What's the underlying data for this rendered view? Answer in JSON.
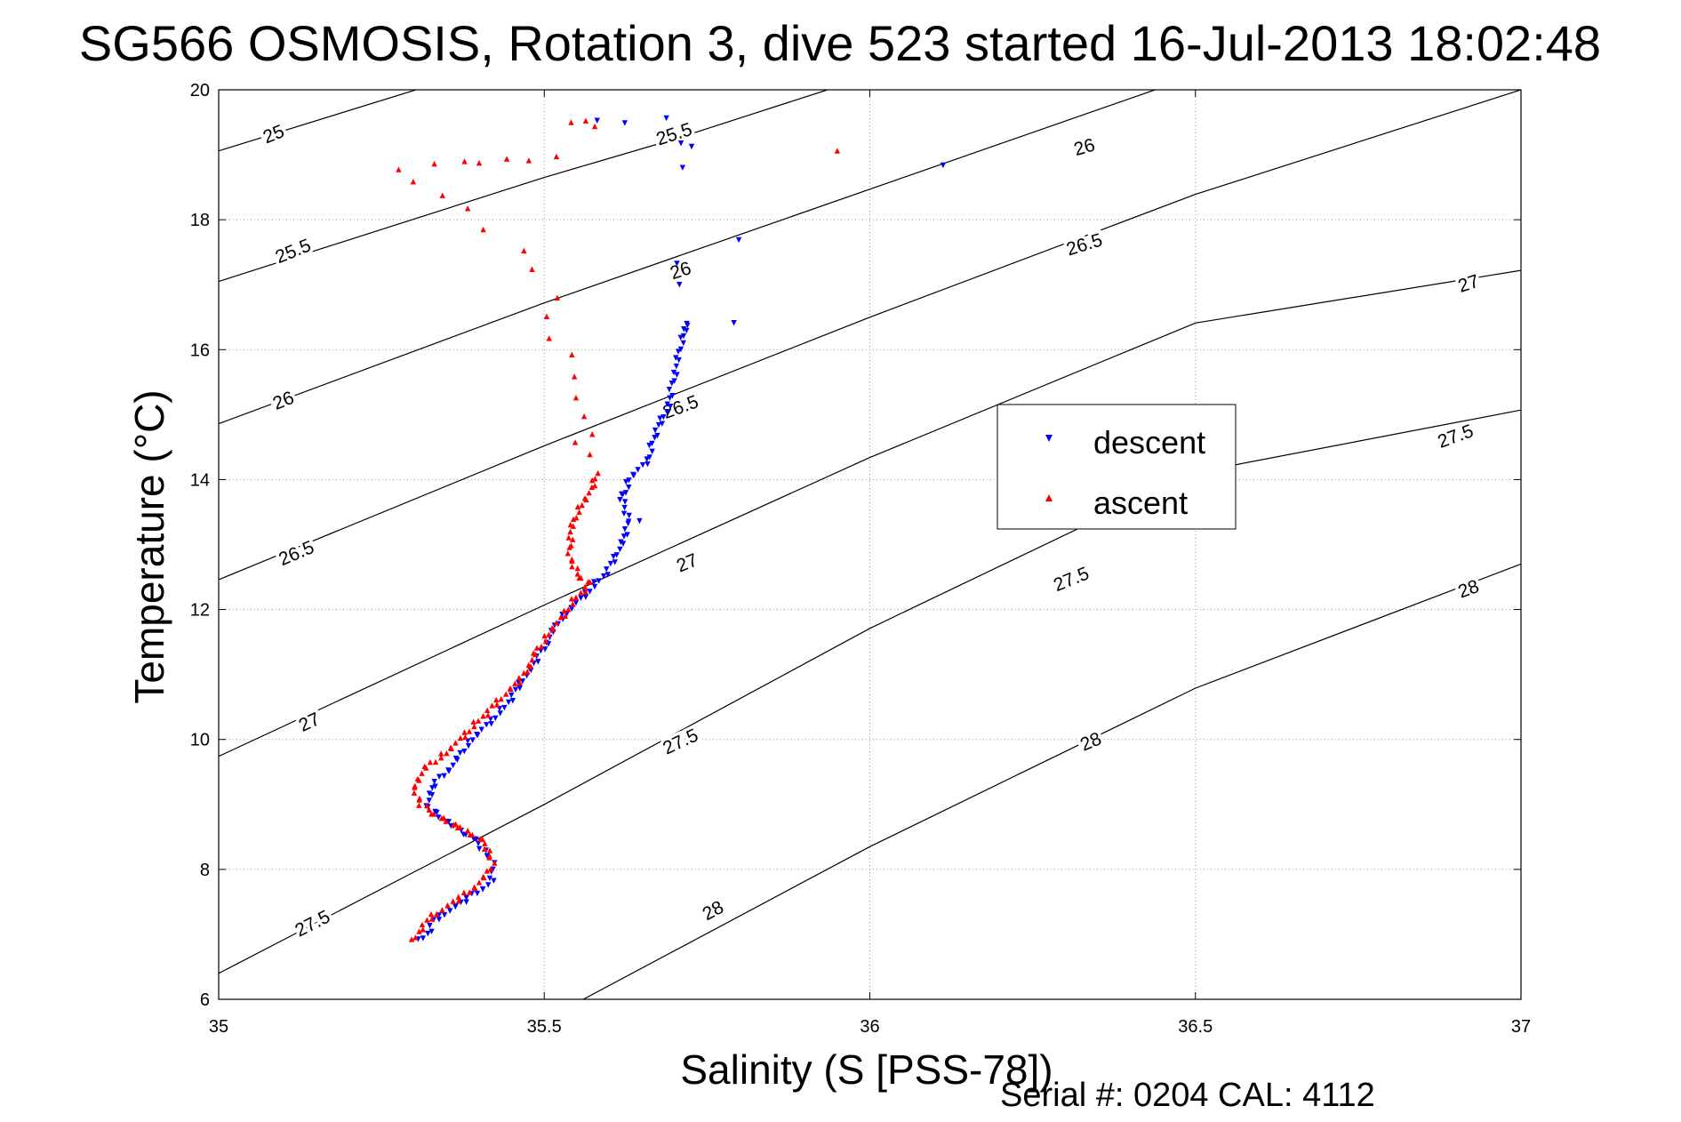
{
  "figure": {
    "title": "SG566 OSMOSIS, Rotation 3, dive 523 started 16-Jul-2013 18:02:48",
    "footer": "Serial #: 0204  CAL: 4112"
  },
  "chart_data": {
    "type": "scatter",
    "xlabel": "Salinity (S [PSS-78])",
    "ylabel": "Temperature (°C)",
    "xlim": [
      35,
      37
    ],
    "ylim": [
      6,
      20
    ],
    "xticks": [
      35,
      35.5,
      36,
      36.5,
      37
    ],
    "xtick_labels": [
      "35",
      "35.5",
      "36",
      "36.5",
      "37"
    ],
    "yticks": [
      6,
      8,
      10,
      12,
      14,
      16,
      18,
      20
    ],
    "ytick_labels": [
      "6",
      "8",
      "10",
      "12",
      "14",
      "16",
      "18",
      "20"
    ],
    "grid": true,
    "legend_placement": "center-right",
    "density_contours": [
      {
        "sigma": 25,
        "points": [
          [
            35.0,
            19.06
          ],
          [
            35.303,
            20.0
          ]
        ]
      },
      {
        "sigma": 25.5,
        "points": [
          [
            35.0,
            17.05
          ],
          [
            35.5,
            18.65
          ],
          [
            35.7,
            19.24
          ],
          [
            35.935,
            20.0
          ]
        ]
      },
      {
        "sigma": 26,
        "points": [
          [
            35.0,
            14.86
          ],
          [
            35.5,
            16.72
          ],
          [
            36.0,
            18.47
          ],
          [
            36.438,
            20.0
          ]
        ]
      },
      {
        "sigma": 26.5,
        "points": [
          [
            35.0,
            12.46
          ],
          [
            35.5,
            14.52
          ],
          [
            36.0,
            16.5
          ],
          [
            36.5,
            18.39
          ],
          [
            37.0,
            20.0
          ]
        ]
      },
      {
        "sigma": 27,
        "points": [
          [
            35.0,
            9.74
          ],
          [
            35.5,
            12.07
          ],
          [
            36.0,
            14.34
          ],
          [
            36.5,
            16.41
          ],
          [
            37.0,
            17.22
          ]
        ]
      },
      {
        "sigma": 27.5,
        "points": [
          [
            35.0,
            6.4
          ],
          [
            35.5,
            9.0
          ],
          [
            36.0,
            11.71
          ],
          [
            36.5,
            14.11
          ],
          [
            37.0,
            15.07
          ]
        ]
      },
      {
        "sigma": 28,
        "points": [
          [
            35.56,
            6.0
          ],
          [
            36.0,
            8.35
          ],
          [
            36.5,
            10.79
          ],
          [
            37.0,
            12.7
          ]
        ]
      }
    ],
    "contour_labels": [
      {
        "text": "25",
        "x": 35.085,
        "y": 19.3,
        "angle": -22
      },
      {
        "text": "25.5",
        "x": 35.7,
        "y": 19.3,
        "angle": -18
      },
      {
        "text": "25.5",
        "x": 35.115,
        "y": 17.5,
        "angle": -22
      },
      {
        "text": "26",
        "x": 36.33,
        "y": 19.1,
        "angle": -16
      },
      {
        "text": "26",
        "x": 35.71,
        "y": 17.2,
        "angle": -18
      },
      {
        "text": "26",
        "x": 35.1,
        "y": 15.2,
        "angle": -22
      },
      {
        "text": "26.5",
        "x": 36.33,
        "y": 17.6,
        "angle": -17
      },
      {
        "text": "26.5",
        "x": 35.71,
        "y": 15.1,
        "angle": -20
      },
      {
        "text": "26.5",
        "x": 35.12,
        "y": 12.85,
        "angle": -23
      },
      {
        "text": "27",
        "x": 36.92,
        "y": 17.0,
        "angle": -18
      },
      {
        "text": "27",
        "x": 35.72,
        "y": 12.7,
        "angle": -22
      },
      {
        "text": "27",
        "x": 35.14,
        "y": 10.25,
        "angle": -25
      },
      {
        "text": "27.5",
        "x": 36.9,
        "y": 14.65,
        "angle": -20
      },
      {
        "text": "27.5",
        "x": 36.31,
        "y": 12.45,
        "angle": -22
      },
      {
        "text": "27.5",
        "x": 35.71,
        "y": 9.95,
        "angle": -25
      },
      {
        "text": "27.5",
        "x": 35.145,
        "y": 7.15,
        "angle": -27
      },
      {
        "text": "28",
        "x": 36.92,
        "y": 12.3,
        "angle": -20
      },
      {
        "text": "28",
        "x": 36.34,
        "y": 9.95,
        "angle": -23
      },
      {
        "text": "28",
        "x": 35.76,
        "y": 7.35,
        "angle": -28
      }
    ],
    "series": [
      {
        "name": "descent",
        "color": "#0000ff",
        "marker": "triangle-down",
        "path": [
          [
            35.31,
            6.9
          ],
          [
            35.32,
            7.0
          ],
          [
            35.33,
            7.2
          ],
          [
            35.36,
            7.4
          ],
          [
            35.39,
            7.6
          ],
          [
            35.42,
            7.8
          ],
          [
            35.42,
            8.1
          ],
          [
            35.4,
            8.4
          ],
          [
            35.37,
            8.6
          ],
          [
            35.34,
            8.8
          ],
          [
            35.32,
            9.0
          ],
          [
            35.33,
            9.3
          ],
          [
            35.36,
            9.6
          ],
          [
            35.38,
            9.9
          ],
          [
            35.41,
            10.2
          ],
          [
            35.44,
            10.5
          ],
          [
            35.46,
            10.8
          ],
          [
            35.48,
            11.1
          ],
          [
            35.5,
            11.4
          ],
          [
            35.52,
            11.8
          ],
          [
            35.56,
            12.2
          ],
          [
            35.59,
            12.5
          ],
          [
            35.61,
            12.8
          ],
          [
            35.63,
            13.3
          ],
          [
            35.62,
            13.7
          ],
          [
            35.63,
            14.0
          ],
          [
            35.66,
            14.3
          ],
          [
            35.67,
            14.7
          ],
          [
            35.69,
            15.1
          ],
          [
            35.7,
            15.6
          ],
          [
            35.71,
            16.1
          ],
          [
            35.72,
            16.4
          ]
        ],
        "extra_points": [
          [
            35.58,
            19.5
          ],
          [
            35.62,
            19.5
          ],
          [
            35.69,
            19.55
          ],
          [
            35.71,
            19.2
          ],
          [
            35.71,
            18.8
          ],
          [
            35.73,
            19.1
          ],
          [
            35.8,
            17.7
          ],
          [
            35.79,
            16.4
          ],
          [
            35.7,
            17.35
          ],
          [
            35.71,
            17.0
          ],
          [
            35.72,
            16.35
          ],
          [
            36.11,
            18.85
          ],
          [
            35.65,
            13.35
          ],
          [
            35.62,
            13.8
          ]
        ]
      },
      {
        "name": "ascent",
        "color": "#ff0000",
        "marker": "triangle-up",
        "path": [
          [
            35.3,
            6.9
          ],
          [
            35.31,
            7.1
          ],
          [
            35.33,
            7.3
          ],
          [
            35.36,
            7.5
          ],
          [
            35.39,
            7.7
          ],
          [
            35.41,
            7.9
          ],
          [
            35.42,
            8.1
          ],
          [
            35.41,
            8.4
          ],
          [
            35.38,
            8.6
          ],
          [
            35.34,
            8.8
          ],
          [
            35.31,
            9.0
          ],
          [
            35.3,
            9.3
          ],
          [
            35.32,
            9.6
          ],
          [
            35.35,
            9.8
          ],
          [
            35.38,
            10.1
          ],
          [
            35.41,
            10.4
          ],
          [
            35.44,
            10.7
          ],
          [
            35.47,
            11.0
          ],
          [
            35.49,
            11.4
          ],
          [
            35.52,
            11.8
          ],
          [
            35.55,
            12.2
          ],
          [
            35.57,
            12.4
          ],
          [
            35.55,
            12.55
          ],
          [
            35.54,
            12.8
          ],
          [
            35.54,
            13.2
          ],
          [
            35.55,
            13.5
          ],
          [
            35.57,
            13.8
          ],
          [
            35.58,
            14.1
          ]
        ],
        "extra_points": [
          [
            35.28,
            18.75
          ],
          [
            35.3,
            18.6
          ],
          [
            35.33,
            18.85
          ],
          [
            35.34,
            18.4
          ],
          [
            35.38,
            18.9
          ],
          [
            35.4,
            18.85
          ],
          [
            35.44,
            18.95
          ],
          [
            35.48,
            18.9
          ],
          [
            35.52,
            19.0
          ],
          [
            35.54,
            19.5
          ],
          [
            35.56,
            19.5
          ],
          [
            35.58,
            19.45
          ],
          [
            35.95,
            19.05
          ],
          [
            35.38,
            18.2
          ],
          [
            35.41,
            17.85
          ],
          [
            35.47,
            17.5
          ],
          [
            35.48,
            17.25
          ],
          [
            35.5,
            16.5
          ],
          [
            35.51,
            16.2
          ],
          [
            35.52,
            16.8
          ],
          [
            35.54,
            15.9
          ],
          [
            35.55,
            15.6
          ],
          [
            35.55,
            15.25
          ],
          [
            35.56,
            15.0
          ],
          [
            35.57,
            14.7
          ],
          [
            35.55,
            14.55
          ],
          [
            35.57,
            14.4
          ]
        ]
      }
    ]
  },
  "legend": {
    "items": [
      {
        "label": "descent",
        "color": "#0000ff",
        "marker": "triangle-down"
      },
      {
        "label": "ascent",
        "color": "#ff0000",
        "marker": "triangle-up"
      }
    ]
  }
}
